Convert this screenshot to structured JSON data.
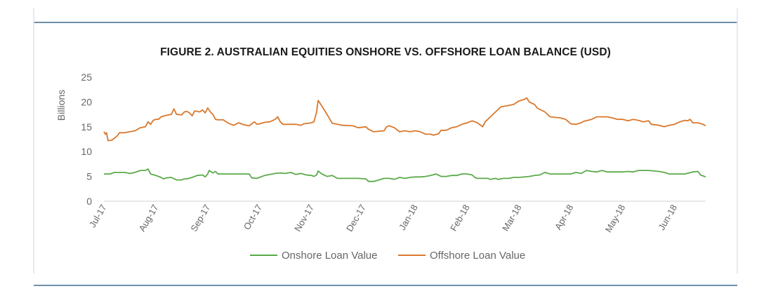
{
  "chart_data": {
    "type": "line",
    "title": "FIGURE 2. AUSTRALIAN EQUITIES ONSHORE VS. OFFSHORE LOAN BALANCE (USD)",
    "xlabel": "",
    "ylabel": "Billions",
    "ylim": [
      0,
      25
    ],
    "yticks": [
      "0",
      "5",
      "10",
      "15",
      "20",
      "25"
    ],
    "categories": [
      "Jul-17",
      "Aug-17",
      "Sep-17",
      "Oct-17",
      "Nov-17",
      "Dec-17",
      "Jan-18",
      "Feb-18",
      "Mar-18",
      "Apr-18",
      "May-18",
      "Jun-18"
    ],
    "grid": false,
    "legend_position": "bottom",
    "series": [
      {
        "name": "Onshore Loan Value",
        "color": "#5aaa4a",
        "points": [
          [
            0,
            5.5
          ],
          [
            0.12,
            5.5
          ],
          [
            0.2,
            5.8
          ],
          [
            0.4,
            5.8
          ],
          [
            0.5,
            5.6
          ],
          [
            0.6,
            5.8
          ],
          [
            0.7,
            6.2
          ],
          [
            0.8,
            6.2
          ],
          [
            0.85,
            6.5
          ],
          [
            0.9,
            5.5
          ],
          [
            1.0,
            5.2
          ],
          [
            1.1,
            4.8
          ],
          [
            1.15,
            4.5
          ],
          [
            1.2,
            4.7
          ],
          [
            1.3,
            4.8
          ],
          [
            1.4,
            4.3
          ],
          [
            1.5,
            4.3
          ],
          [
            1.55,
            4.5
          ],
          [
            1.6,
            4.5
          ],
          [
            1.7,
            4.8
          ],
          [
            1.8,
            5.2
          ],
          [
            1.9,
            5.3
          ],
          [
            1.95,
            4.9
          ],
          [
            2.0,
            5.5
          ],
          [
            2.03,
            6.2
          ],
          [
            2.1,
            5.7
          ],
          [
            2.15,
            6.0
          ],
          [
            2.2,
            5.5
          ],
          [
            2.3,
            5.5
          ],
          [
            2.5,
            5.5
          ],
          [
            2.8,
            5.5
          ],
          [
            2.85,
            4.7
          ],
          [
            2.95,
            4.6
          ],
          [
            3.0,
            4.8
          ],
          [
            3.1,
            5.2
          ],
          [
            3.2,
            5.4
          ],
          [
            3.3,
            5.6
          ],
          [
            3.4,
            5.7
          ],
          [
            3.5,
            5.6
          ],
          [
            3.6,
            5.8
          ],
          [
            3.7,
            5.4
          ],
          [
            3.8,
            5.6
          ],
          [
            3.9,
            5.3
          ],
          [
            4.0,
            5.2
          ],
          [
            4.05,
            5.0
          ],
          [
            4.1,
            5.3
          ],
          [
            4.13,
            6.1
          ],
          [
            4.2,
            5.5
          ],
          [
            4.3,
            5.0
          ],
          [
            4.4,
            5.2
          ],
          [
            4.5,
            4.6
          ],
          [
            4.7,
            4.6
          ],
          [
            4.9,
            4.6
          ],
          [
            5.05,
            4.5
          ],
          [
            5.1,
            4.0
          ],
          [
            5.2,
            4.0
          ],
          [
            5.3,
            4.3
          ],
          [
            5.4,
            4.6
          ],
          [
            5.5,
            4.6
          ],
          [
            5.6,
            4.4
          ],
          [
            5.7,
            4.8
          ],
          [
            5.8,
            4.6
          ],
          [
            5.9,
            4.8
          ],
          [
            6.0,
            4.9
          ],
          [
            6.1,
            4.9
          ],
          [
            6.2,
            5.0
          ],
          [
            6.3,
            5.2
          ],
          [
            6.4,
            5.5
          ],
          [
            6.5,
            5.0
          ],
          [
            6.6,
            5.0
          ],
          [
            6.7,
            5.2
          ],
          [
            6.8,
            5.2
          ],
          [
            6.9,
            5.5
          ],
          [
            7.0,
            5.5
          ],
          [
            7.1,
            5.3
          ],
          [
            7.15,
            4.8
          ],
          [
            7.2,
            4.6
          ],
          [
            7.4,
            4.6
          ],
          [
            7.45,
            4.4
          ],
          [
            7.55,
            4.6
          ],
          [
            7.6,
            4.4
          ],
          [
            7.7,
            4.6
          ],
          [
            7.8,
            4.6
          ],
          [
            7.9,
            4.8
          ],
          [
            8.0,
            4.8
          ],
          [
            8.2,
            5.0
          ],
          [
            8.3,
            5.2
          ],
          [
            8.4,
            5.3
          ],
          [
            8.5,
            5.8
          ],
          [
            8.6,
            5.5
          ],
          [
            8.8,
            5.5
          ],
          [
            9.0,
            5.5
          ],
          [
            9.1,
            5.8
          ],
          [
            9.2,
            5.6
          ],
          [
            9.3,
            6.2
          ],
          [
            9.4,
            6.0
          ],
          [
            9.5,
            5.9
          ],
          [
            9.6,
            6.2
          ],
          [
            9.7,
            5.9
          ],
          [
            9.9,
            5.9
          ],
          [
            10.0,
            5.9
          ],
          [
            10.1,
            6.0
          ],
          [
            10.2,
            5.9
          ],
          [
            10.3,
            6.2
          ],
          [
            10.5,
            6.2
          ],
          [
            10.7,
            6.0
          ],
          [
            10.8,
            5.8
          ],
          [
            10.9,
            5.5
          ],
          [
            11.0,
            5.5
          ],
          [
            11.2,
            5.5
          ],
          [
            11.35,
            5.9
          ],
          [
            11.45,
            6.0
          ],
          [
            11.5,
            5.3
          ],
          [
            11.6,
            4.9
          ]
        ]
      },
      {
        "name": "Offshore Loan Value",
        "color": "#d9782d",
        "points": [
          [
            0,
            14.0
          ],
          [
            0.03,
            13.5
          ],
          [
            0.05,
            13.8
          ],
          [
            0.08,
            12.2
          ],
          [
            0.15,
            12.3
          ],
          [
            0.2,
            12.7
          ],
          [
            0.25,
            13.1
          ],
          [
            0.3,
            13.8
          ],
          [
            0.4,
            13.8
          ],
          [
            0.5,
            14.0
          ],
          [
            0.6,
            14.2
          ],
          [
            0.7,
            14.8
          ],
          [
            0.8,
            15.0
          ],
          [
            0.85,
            16.0
          ],
          [
            0.9,
            15.5
          ],
          [
            0.95,
            16.3
          ],
          [
            1.0,
            16.5
          ],
          [
            1.05,
            16.5
          ],
          [
            1.1,
            17.0
          ],
          [
            1.2,
            17.3
          ],
          [
            1.3,
            17.5
          ],
          [
            1.35,
            18.6
          ],
          [
            1.4,
            17.5
          ],
          [
            1.5,
            17.4
          ],
          [
            1.55,
            18.0
          ],
          [
            1.6,
            18.1
          ],
          [
            1.65,
            17.8
          ],
          [
            1.7,
            17.2
          ],
          [
            1.75,
            18.2
          ],
          [
            1.85,
            18.0
          ],
          [
            1.9,
            18.4
          ],
          [
            1.95,
            17.8
          ],
          [
            2.0,
            18.8
          ],
          [
            2.05,
            18.0
          ],
          [
            2.1,
            17.5
          ],
          [
            2.15,
            16.5
          ],
          [
            2.2,
            16.4
          ],
          [
            2.3,
            16.4
          ],
          [
            2.4,
            15.7
          ],
          [
            2.5,
            15.3
          ],
          [
            2.6,
            15.8
          ],
          [
            2.7,
            15.4
          ],
          [
            2.8,
            15.2
          ],
          [
            2.9,
            16.0
          ],
          [
            2.95,
            15.5
          ],
          [
            3.0,
            15.6
          ],
          [
            3.1,
            15.9
          ],
          [
            3.2,
            16.0
          ],
          [
            3.3,
            16.5
          ],
          [
            3.35,
            17.0
          ],
          [
            3.4,
            16.0
          ],
          [
            3.45,
            15.5
          ],
          [
            3.5,
            15.5
          ],
          [
            3.6,
            15.5
          ],
          [
            3.7,
            15.5
          ],
          [
            3.8,
            15.3
          ],
          [
            3.85,
            15.6
          ],
          [
            4.0,
            15.8
          ],
          [
            4.05,
            16.0
          ],
          [
            4.1,
            18.0
          ],
          [
            4.13,
            20.3
          ],
          [
            4.2,
            19.2
          ],
          [
            4.3,
            17.5
          ],
          [
            4.4,
            15.7
          ],
          [
            4.5,
            15.5
          ],
          [
            4.6,
            15.3
          ],
          [
            4.8,
            15.2
          ],
          [
            4.9,
            14.8
          ],
          [
            5.05,
            15.0
          ],
          [
            5.1,
            14.5
          ],
          [
            5.2,
            14.0
          ],
          [
            5.4,
            14.2
          ],
          [
            5.45,
            15.0
          ],
          [
            5.5,
            15.2
          ],
          [
            5.6,
            14.8
          ],
          [
            5.7,
            14.0
          ],
          [
            5.8,
            14.2
          ],
          [
            5.9,
            14.0
          ],
          [
            6.0,
            14.2
          ],
          [
            6.1,
            14.0
          ],
          [
            6.2,
            13.5
          ],
          [
            6.3,
            13.5
          ],
          [
            6.35,
            13.3
          ],
          [
            6.45,
            13.6
          ],
          [
            6.5,
            14.3
          ],
          [
            6.6,
            14.3
          ],
          [
            6.7,
            14.8
          ],
          [
            6.8,
            15.0
          ],
          [
            6.9,
            15.5
          ],
          [
            7.0,
            15.8
          ],
          [
            7.1,
            16.2
          ],
          [
            7.2,
            15.8
          ],
          [
            7.3,
            15.0
          ],
          [
            7.35,
            16.0
          ],
          [
            7.5,
            17.5
          ],
          [
            7.6,
            18.5
          ],
          [
            7.65,
            19.0
          ],
          [
            7.8,
            19.3
          ],
          [
            7.9,
            19.5
          ],
          [
            8.0,
            20.2
          ],
          [
            8.1,
            20.5
          ],
          [
            8.15,
            20.8
          ],
          [
            8.2,
            20.0
          ],
          [
            8.3,
            19.5
          ],
          [
            8.35,
            18.8
          ],
          [
            8.4,
            18.5
          ],
          [
            8.5,
            18.0
          ],
          [
            8.6,
            17.0
          ],
          [
            8.8,
            16.8
          ],
          [
            8.9,
            16.5
          ],
          [
            9.0,
            15.6
          ],
          [
            9.1,
            15.5
          ],
          [
            9.2,
            15.8
          ],
          [
            9.25,
            16.1
          ],
          [
            9.4,
            16.5
          ],
          [
            9.5,
            17.0
          ],
          [
            9.6,
            17.0
          ],
          [
            9.7,
            17.0
          ],
          [
            9.8,
            16.8
          ],
          [
            9.9,
            16.5
          ],
          [
            10.0,
            16.5
          ],
          [
            10.1,
            16.2
          ],
          [
            10.2,
            16.5
          ],
          [
            10.3,
            16.3
          ],
          [
            10.4,
            16.0
          ],
          [
            10.5,
            16.2
          ],
          [
            10.55,
            15.5
          ],
          [
            10.7,
            15.3
          ],
          [
            10.8,
            15.0
          ],
          [
            10.9,
            15.3
          ],
          [
            11.0,
            15.5
          ],
          [
            11.1,
            16.0
          ],
          [
            11.2,
            16.3
          ],
          [
            11.25,
            16.2
          ],
          [
            11.3,
            16.5
          ],
          [
            11.35,
            15.8
          ],
          [
            11.45,
            15.8
          ],
          [
            11.55,
            15.5
          ],
          [
            11.6,
            15.2
          ]
        ]
      }
    ]
  }
}
